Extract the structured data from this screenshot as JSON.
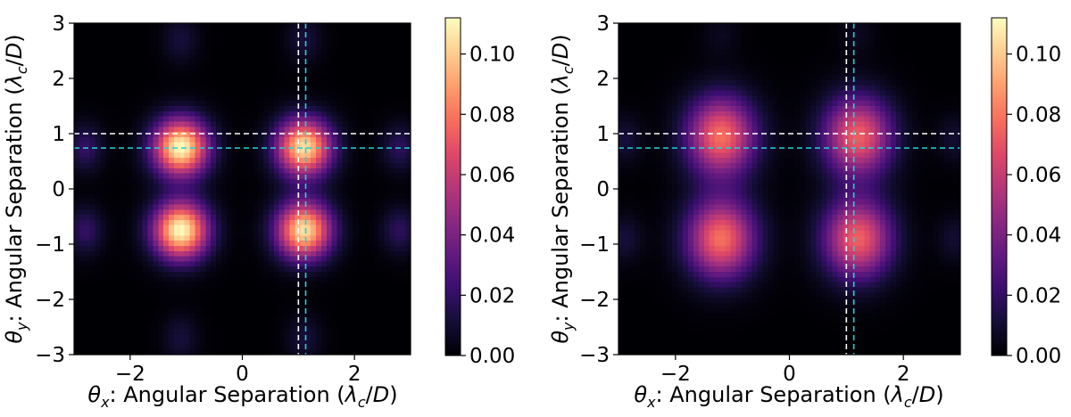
{
  "chart_data": [
    {
      "type": "heatmap",
      "title": "",
      "xlabel": "θx: Angular Separation (λc/D)",
      "ylabel": "θy: Angular Separation (λc/D)",
      "xlabel_parts": {
        "sym": "θ",
        "sub": "x",
        "text": ": Angular Separation (",
        "lam": "λ",
        "lamsub": "c",
        "tail": "/",
        "D": "D",
        "close": ")"
      },
      "ylabel_parts": {
        "sym": "θ",
        "sub": "y",
        "text": ": Angular Separation (",
        "lam": "λ",
        "lamsub": "c",
        "tail": "/",
        "D": "D",
        "close": ")"
      },
      "xlim": [
        -3,
        3
      ],
      "ylim": [
        -3,
        3
      ],
      "xticks": [
        -2,
        0,
        2
      ],
      "xtick_labels": [
        "−2",
        "0",
        "2"
      ],
      "yticks": [
        -3,
        -2,
        -1,
        0,
        1,
        2,
        3
      ],
      "ytick_labels": [
        "−3",
        "−2",
        "−1",
        "0",
        "1",
        "2",
        "3"
      ],
      "colormap": "magma",
      "colorbar": {
        "range": [
          0,
          0.112
        ],
        "ticks": [
          0,
          0.02,
          0.04,
          0.06,
          0.08,
          0.1
        ],
        "tick_labels": [
          "0.00",
          "0.02",
          "0.04",
          "0.06",
          "0.08",
          "0.10"
        ]
      },
      "peaks": [
        {
          "x": -1.1,
          "y": 0.75,
          "value": 0.112
        },
        {
          "x": 1.1,
          "y": 0.75,
          "value": 0.105
        },
        {
          "x": -1.1,
          "y": -0.75,
          "value": 0.112
        },
        {
          "x": 1.1,
          "y": -0.75,
          "value": 0.105
        }
      ],
      "peak_width": [
        0.34,
        0.36
      ],
      "side_lobes": [
        {
          "x": -2.8,
          "y": 0.75,
          "value": 0.02
        },
        {
          "x": 2.8,
          "y": 0.75,
          "value": 0.018
        },
        {
          "x": -2.8,
          "y": -0.75,
          "value": 0.02
        },
        {
          "x": 2.8,
          "y": -0.75,
          "value": 0.018
        },
        {
          "x": -1.1,
          "y": 2.7,
          "value": 0.012
        },
        {
          "x": 1.1,
          "y": 2.7,
          "value": 0.012
        },
        {
          "x": -1.1,
          "y": -2.7,
          "value": 0.012
        },
        {
          "x": 1.1,
          "y": -2.7,
          "value": 0.012
        }
      ],
      "reference_lines": [
        {
          "orientation": "vertical",
          "value": 1.0,
          "color": "#ffffff"
        },
        {
          "orientation": "horizontal",
          "value": 1.0,
          "color": "#ffffff"
        },
        {
          "orientation": "vertical",
          "value": 1.13,
          "color": "#22d3d8"
        },
        {
          "orientation": "horizontal",
          "value": 0.74,
          "color": "#22d3d8"
        }
      ]
    },
    {
      "type": "heatmap",
      "title": "",
      "xlabel": "θx: Angular Separation (λc/D)",
      "ylabel": "θy: Angular Separation (λc/D)",
      "xlabel_parts": {
        "sym": "θ",
        "sub": "x",
        "text": ": Angular Separation (",
        "lam": "λ",
        "lamsub": "c",
        "tail": "/",
        "D": "D",
        "close": ")"
      },
      "ylabel_parts": {
        "sym": "θ",
        "sub": "y",
        "text": ": Angular Separation (",
        "lam": "λ",
        "lamsub": "c",
        "tail": "/",
        "D": "D",
        "close": ")"
      },
      "xlim": [
        -3,
        3
      ],
      "ylim": [
        -3,
        3
      ],
      "xticks": [
        -2,
        0,
        2
      ],
      "xtick_labels": [
        "−2",
        "0",
        "2"
      ],
      "yticks": [
        -3,
        -2,
        -1,
        0,
        1,
        2,
        3
      ],
      "ytick_labels": [
        "−3",
        "−2",
        "−1",
        "0",
        "1",
        "2",
        "3"
      ],
      "colormap": "magma",
      "colorbar": {
        "range": [
          0,
          0.112
        ],
        "ticks": [
          0,
          0.02,
          0.04,
          0.06,
          0.08,
          0.1
        ],
        "tick_labels": [
          "0.00",
          "0.02",
          "0.04",
          "0.06",
          "0.08",
          "0.10"
        ]
      },
      "peaks": [
        {
          "x": -1.2,
          "y": 0.95,
          "value": 0.078
        },
        {
          "x": 1.2,
          "y": 0.95,
          "value": 0.074
        },
        {
          "x": -1.2,
          "y": -0.9,
          "value": 0.078
        },
        {
          "x": 1.2,
          "y": -0.9,
          "value": 0.074
        }
      ],
      "peak_width": [
        0.42,
        0.5
      ],
      "side_lobes": [
        {
          "x": -2.9,
          "y": 0.9,
          "value": 0.012
        },
        {
          "x": 2.9,
          "y": 0.9,
          "value": 0.01
        },
        {
          "x": -2.9,
          "y": -0.9,
          "value": 0.012
        },
        {
          "x": 2.9,
          "y": -0.9,
          "value": 0.01
        },
        {
          "x": -1.2,
          "y": 2.8,
          "value": 0.006
        },
        {
          "x": 1.2,
          "y": 2.8,
          "value": 0.006
        }
      ],
      "reference_lines": [
        {
          "orientation": "vertical",
          "value": 1.0,
          "color": "#ffffff"
        },
        {
          "orientation": "horizontal",
          "value": 1.0,
          "color": "#ffffff"
        },
        {
          "orientation": "vertical",
          "value": 1.13,
          "color": "#22d3d8"
        },
        {
          "orientation": "horizontal",
          "value": 0.74,
          "color": "#22d3d8"
        }
      ]
    }
  ]
}
